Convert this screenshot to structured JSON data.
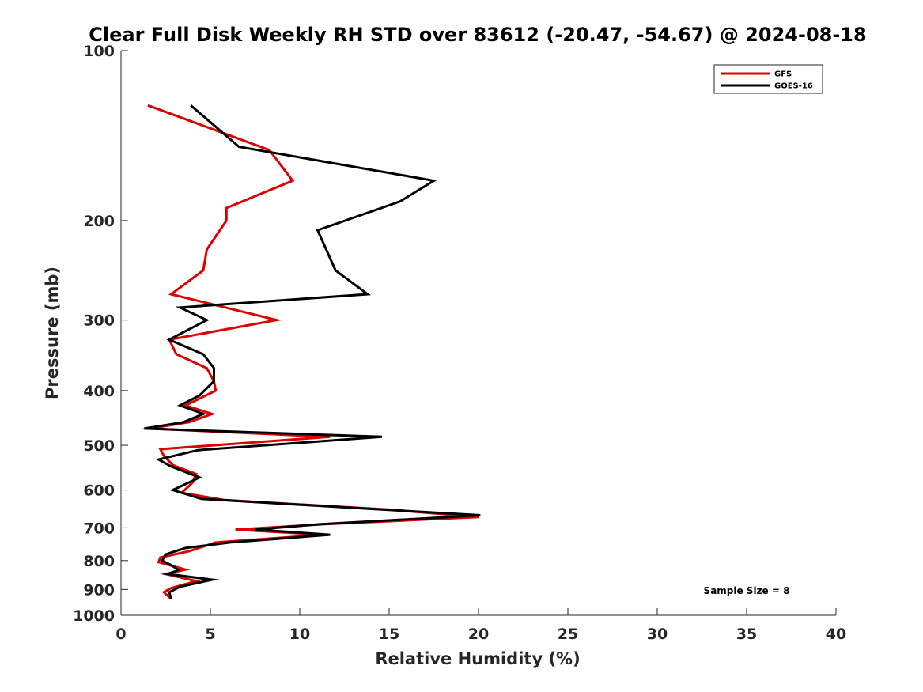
{
  "chart_data": {
    "type": "line",
    "title": "Clear Full Disk Weekly RH STD over 83612 (-20.47, -54.67) @ 2024-08-18",
    "xlabel": "Relative Humidity (%)",
    "ylabel": "Pressure (mb)",
    "xlim": [
      0,
      40
    ],
    "ylim": [
      100,
      1000
    ],
    "y_scale": "log",
    "y_reversed": true,
    "x_ticks": [
      "0",
      "5",
      "10",
      "15",
      "20",
      "25",
      "30",
      "35",
      "40"
    ],
    "y_ticks": [
      "100",
      "200",
      "300",
      "400",
      "500",
      "600",
      "700",
      "800",
      "900",
      "1000"
    ],
    "grid": false,
    "legend_position": "top-right",
    "annotation": "Sample Size = 8",
    "series": [
      {
        "name": "GFS",
        "color": "#dd0000",
        "points": [
          [
            1.5,
            125
          ],
          [
            8.3,
            150
          ],
          [
            9.6,
            170
          ],
          [
            5.9,
            190
          ],
          [
            5.9,
            200
          ],
          [
            4.8,
            225
          ],
          [
            4.6,
            245
          ],
          [
            2.8,
            270
          ],
          [
            8.7,
            300
          ],
          [
            2.7,
            325
          ],
          [
            3.1,
            345
          ],
          [
            4.8,
            365
          ],
          [
            5.2,
            385
          ],
          [
            5.3,
            400
          ],
          [
            3.6,
            425
          ],
          [
            5.1,
            440
          ],
          [
            3.8,
            455
          ],
          [
            1.6,
            467
          ],
          [
            11.7,
            483
          ],
          [
            2.2,
            508
          ],
          [
            2.4,
            522
          ],
          [
            2.9,
            542
          ],
          [
            4.2,
            562
          ],
          [
            4.0,
            582
          ],
          [
            3.4,
            607
          ],
          [
            5.8,
            625
          ],
          [
            15.0,
            650
          ],
          [
            20.0,
            670
          ],
          [
            11.3,
            690
          ],
          [
            6.4,
            705
          ],
          [
            11.3,
            720
          ],
          [
            5.3,
            743
          ],
          [
            3.8,
            770
          ],
          [
            2.2,
            790
          ],
          [
            2.1,
            805
          ],
          [
            3.6,
            830
          ],
          [
            2.5,
            845
          ],
          [
            4.2,
            870
          ],
          [
            2.8,
            895
          ],
          [
            2.4,
            910
          ],
          [
            2.8,
            935
          ]
        ]
      },
      {
        "name": "GOES-16",
        "color": "#000000",
        "points": [
          [
            3.9,
            125
          ],
          [
            6.6,
            148
          ],
          [
            17.5,
            170
          ],
          [
            15.6,
            185
          ],
          [
            11.0,
            208
          ],
          [
            12.0,
            245
          ],
          [
            13.8,
            270
          ],
          [
            3.3,
            285
          ],
          [
            4.8,
            300
          ],
          [
            2.7,
            325
          ],
          [
            4.6,
            345
          ],
          [
            5.2,
            365
          ],
          [
            5.2,
            385
          ],
          [
            4.4,
            408
          ],
          [
            3.3,
            425
          ],
          [
            4.6,
            440
          ],
          [
            3.5,
            455
          ],
          [
            1.3,
            467
          ],
          [
            14.6,
            483
          ],
          [
            4.3,
            510
          ],
          [
            2.1,
            530
          ],
          [
            2.8,
            545
          ],
          [
            4.4,
            570
          ],
          [
            2.9,
            600
          ],
          [
            4.5,
            622
          ],
          [
            14.0,
            648
          ],
          [
            20.1,
            665
          ],
          [
            11.1,
            690
          ],
          [
            7.5,
            705
          ],
          [
            11.7,
            720
          ],
          [
            6.1,
            743
          ],
          [
            3.6,
            760
          ],
          [
            2.5,
            780
          ],
          [
            2.3,
            800
          ],
          [
            2.9,
            818
          ],
          [
            3.2,
            832
          ],
          [
            2.6,
            845
          ],
          [
            5.1,
            865
          ],
          [
            3.3,
            890
          ],
          [
            2.7,
            910
          ],
          [
            2.8,
            935
          ]
        ]
      }
    ]
  }
}
